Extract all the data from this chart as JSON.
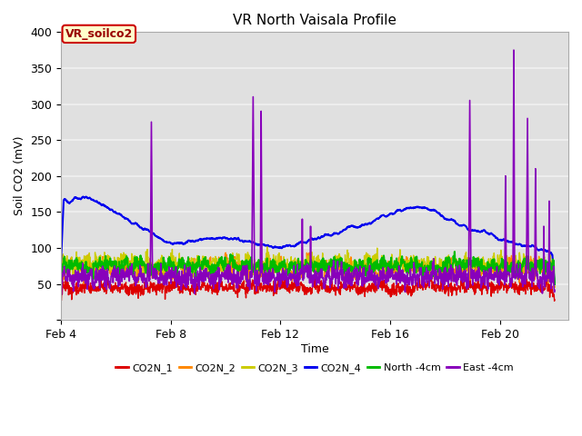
{
  "title": "VR North Vaisala Profile",
  "xlabel": "Time",
  "ylabel": "Soil CO2 (mV)",
  "annotation": "VR_soilco2",
  "ylim": [
    0,
    400
  ],
  "xlim_days": [
    4,
    22.5
  ],
  "xtick_positions": [
    4,
    8,
    12,
    16,
    20
  ],
  "xtick_labels": [
    "Feb 4",
    "Feb 8",
    "Feb 12",
    "Feb 16",
    "Feb 20"
  ],
  "ytick_positions": [
    0,
    50,
    100,
    150,
    200,
    250,
    300,
    350,
    400
  ],
  "plot_bg_color": "#e0e0e0",
  "fig_bg_color": "#ffffff",
  "grid_color": "#f0f0f0",
  "lines": {
    "CO2N_1": {
      "color": "#dd0000",
      "lw": 1.0
    },
    "CO2N_2": {
      "color": "#ff8800",
      "lw": 1.0
    },
    "CO2N_3": {
      "color": "#cccc00",
      "lw": 1.0
    },
    "CO2N_4": {
      "color": "#0000ee",
      "lw": 1.5
    },
    "North -4cm": {
      "color": "#00bb00",
      "lw": 1.5
    },
    "East -4cm": {
      "color": "#8800bb",
      "lw": 1.2
    }
  },
  "annotation_box": {
    "facecolor": "#ffffcc",
    "edgecolor": "#cc0000",
    "textcolor": "#990000",
    "fontsize": 9,
    "fontweight": "bold"
  }
}
